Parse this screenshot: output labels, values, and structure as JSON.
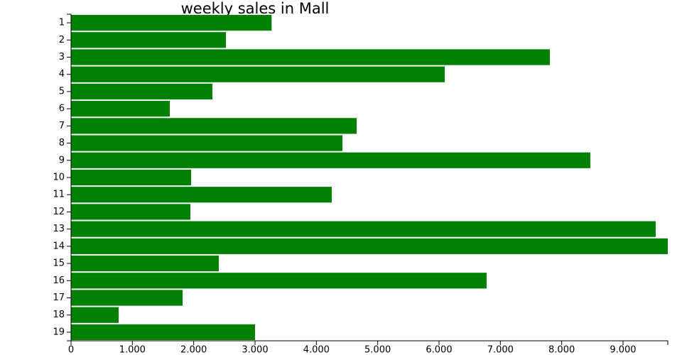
{
  "chart_data": {
    "type": "bar",
    "orientation": "horizontal",
    "title": "weekly sales in Mall",
    "categories": [
      "1",
      "2",
      "3",
      "4",
      "5",
      "6",
      "7",
      "8",
      "9",
      "10",
      "11",
      "12",
      "13",
      "14",
      "15",
      "16",
      "17",
      "18",
      "19"
    ],
    "values": [
      3270,
      2525,
      7807,
      6093,
      2305,
      1610,
      4657,
      4425,
      8467,
      1958,
      4251,
      1946,
      9533,
      9730,
      2409,
      6776,
      1819,
      776,
      3000
    ],
    "color": "#008000",
    "xlim": [
      0,
      9730
    ],
    "xticks": [
      0,
      {
        "value": 1000,
        "label": "1.000"
      },
      {
        "value": 2000,
        "label": "2.000"
      },
      {
        "value": 3000,
        "label": "3.000"
      },
      {
        "value": 4000,
        "label": "4.000"
      },
      {
        "value": 5000,
        "label": "5.000"
      },
      {
        "value": 6000,
        "label": "6.000"
      },
      {
        "value": 7000,
        "label": "7.000"
      },
      {
        "value": 8000,
        "label": "8.000"
      },
      {
        "value": 9000,
        "label": "9.000"
      }
    ],
    "grid": false
  }
}
